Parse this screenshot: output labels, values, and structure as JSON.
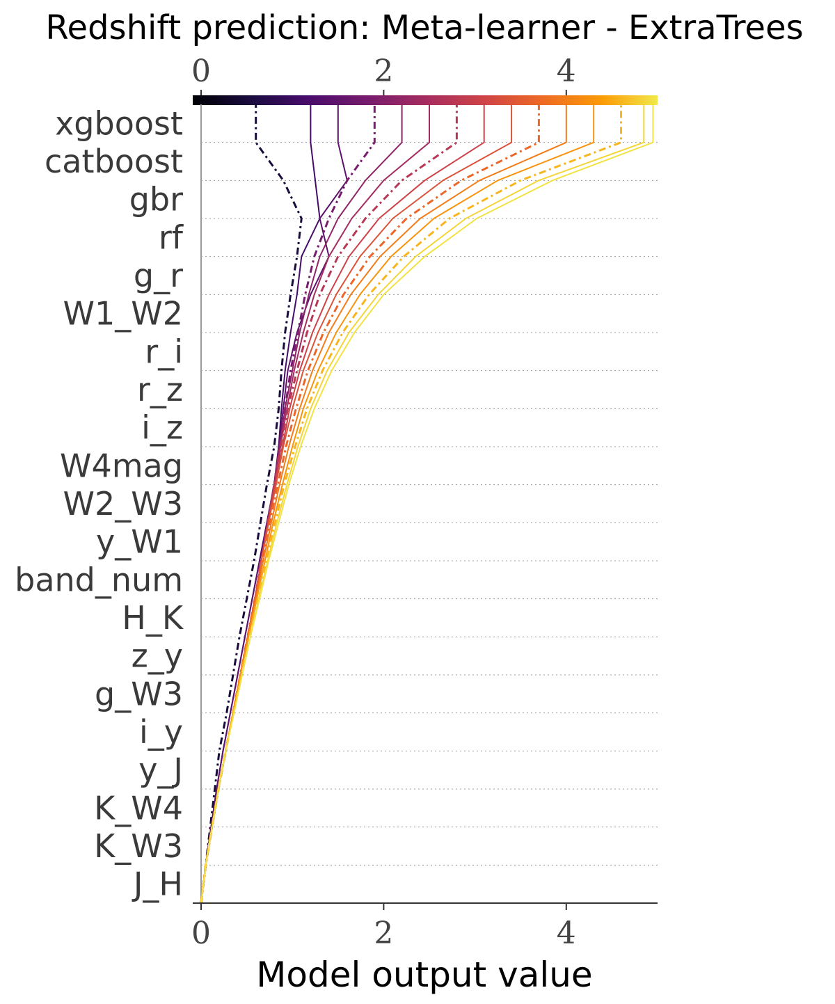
{
  "chart_data": {
    "type": "line",
    "title": "Redshift prediction: Meta-learner - ExtraTrees",
    "xlabel": "Model output value",
    "ylabel": "",
    "xlim": [
      0,
      5
    ],
    "x_ticks": [
      "0",
      "2",
      "4"
    ],
    "features": [
      "xgboost",
      "catboost",
      "gbr",
      "rf",
      "g_r",
      "W1_W2",
      "r_i",
      "r_z",
      "i_z",
      "W4mag",
      "W2_W3",
      "y_W1",
      "band_num",
      "H_K",
      "z_y",
      "g_W3",
      "i_y",
      "y_J",
      "K_W4",
      "K_W3",
      "J_H"
    ],
    "colorbar": {
      "ticks": [
        "0",
        "2",
        "4"
      ],
      "range": [
        0,
        5
      ],
      "colormap": "inferno"
    },
    "base_value": 0,
    "grid": "dotted horizontal",
    "series": [
      {
        "final": 0.6,
        "path": [
          0.0,
          0.05,
          0.1,
          0.15,
          0.2,
          0.28,
          0.35,
          0.42,
          0.5,
          0.58,
          0.65,
          0.72,
          0.8,
          0.85,
          0.88,
          0.92,
          0.98,
          1.05,
          1.1,
          0.9,
          0.6
        ]
      },
      {
        "final": 1.2,
        "path": [
          0.0,
          0.05,
          0.11,
          0.17,
          0.24,
          0.32,
          0.4,
          0.48,
          0.56,
          0.64,
          0.72,
          0.8,
          0.85,
          0.88,
          0.92,
          0.98,
          1.05,
          1.1,
          1.3,
          1.25,
          1.2
        ]
      },
      {
        "final": 1.5,
        "path": [
          0.0,
          0.05,
          0.11,
          0.17,
          0.24,
          0.32,
          0.4,
          0.48,
          0.56,
          0.64,
          0.72,
          0.8,
          0.85,
          0.9,
          0.95,
          1.05,
          1.2,
          1.4,
          1.3,
          1.6,
          1.5
        ]
      },
      {
        "final": 1.9,
        "path": [
          0.0,
          0.05,
          0.12,
          0.19,
          0.27,
          0.35,
          0.43,
          0.51,
          0.59,
          0.66,
          0.73,
          0.8,
          0.86,
          0.92,
          0.98,
          1.06,
          1.14,
          1.24,
          1.4,
          1.6,
          1.9
        ]
      },
      {
        "final": 2.2,
        "path": [
          0.0,
          0.05,
          0.12,
          0.19,
          0.27,
          0.35,
          0.43,
          0.51,
          0.59,
          0.66,
          0.73,
          0.8,
          0.86,
          0.92,
          1.0,
          1.08,
          1.18,
          1.3,
          1.5,
          1.8,
          2.2
        ]
      },
      {
        "final": 2.5,
        "path": [
          0.0,
          0.05,
          0.12,
          0.19,
          0.27,
          0.35,
          0.43,
          0.51,
          0.59,
          0.66,
          0.73,
          0.8,
          0.87,
          0.94,
          1.02,
          1.12,
          1.24,
          1.4,
          1.65,
          2.0,
          2.5
        ]
      },
      {
        "final": 2.8,
        "path": [
          0.0,
          0.05,
          0.12,
          0.19,
          0.27,
          0.35,
          0.43,
          0.51,
          0.59,
          0.66,
          0.73,
          0.8,
          0.87,
          0.95,
          1.05,
          1.16,
          1.3,
          1.5,
          1.8,
          2.2,
          2.8
        ]
      },
      {
        "final": 3.1,
        "path": [
          0.0,
          0.05,
          0.12,
          0.19,
          0.27,
          0.35,
          0.43,
          0.51,
          0.59,
          0.66,
          0.73,
          0.81,
          0.89,
          0.97,
          1.08,
          1.22,
          1.4,
          1.62,
          1.95,
          2.45,
          3.1
        ]
      },
      {
        "final": 3.4,
        "path": [
          0.0,
          0.05,
          0.12,
          0.19,
          0.27,
          0.35,
          0.43,
          0.51,
          0.59,
          0.66,
          0.74,
          0.82,
          0.9,
          1.0,
          1.12,
          1.28,
          1.48,
          1.74,
          2.1,
          2.65,
          3.4
        ]
      },
      {
        "final": 3.7,
        "path": [
          0.0,
          0.05,
          0.12,
          0.19,
          0.27,
          0.35,
          0.43,
          0.51,
          0.59,
          0.67,
          0.75,
          0.84,
          0.93,
          1.04,
          1.17,
          1.34,
          1.56,
          1.85,
          2.25,
          2.85,
          3.7
        ]
      },
      {
        "final": 4.0,
        "path": [
          0.0,
          0.05,
          0.12,
          0.19,
          0.27,
          0.35,
          0.43,
          0.51,
          0.6,
          0.68,
          0.77,
          0.86,
          0.96,
          1.08,
          1.22,
          1.4,
          1.64,
          1.96,
          2.4,
          3.05,
          4.0
        ]
      },
      {
        "final": 4.3,
        "path": [
          0.0,
          0.05,
          0.12,
          0.19,
          0.27,
          0.35,
          0.43,
          0.52,
          0.61,
          0.7,
          0.79,
          0.89,
          1.0,
          1.12,
          1.28,
          1.48,
          1.74,
          2.08,
          2.55,
          3.25,
          4.3
        ]
      },
      {
        "final": 4.6,
        "path": [
          0.0,
          0.05,
          0.12,
          0.19,
          0.27,
          0.35,
          0.44,
          0.53,
          0.62,
          0.71,
          0.81,
          0.91,
          1.03,
          1.16,
          1.33,
          1.55,
          1.84,
          2.22,
          2.72,
          3.5,
          4.6
        ]
      },
      {
        "final": 4.85,
        "path": [
          0.0,
          0.05,
          0.12,
          0.19,
          0.27,
          0.36,
          0.45,
          0.54,
          0.63,
          0.73,
          0.83,
          0.94,
          1.06,
          1.2,
          1.38,
          1.62,
          1.94,
          2.35,
          2.9,
          3.7,
          4.85
        ]
      },
      {
        "final": 4.95,
        "path": [
          0.0,
          0.05,
          0.12,
          0.19,
          0.27,
          0.36,
          0.45,
          0.54,
          0.64,
          0.74,
          0.85,
          0.96,
          1.09,
          1.24,
          1.43,
          1.68,
          2.0,
          2.45,
          3.02,
          3.85,
          4.95
        ]
      }
    ]
  }
}
